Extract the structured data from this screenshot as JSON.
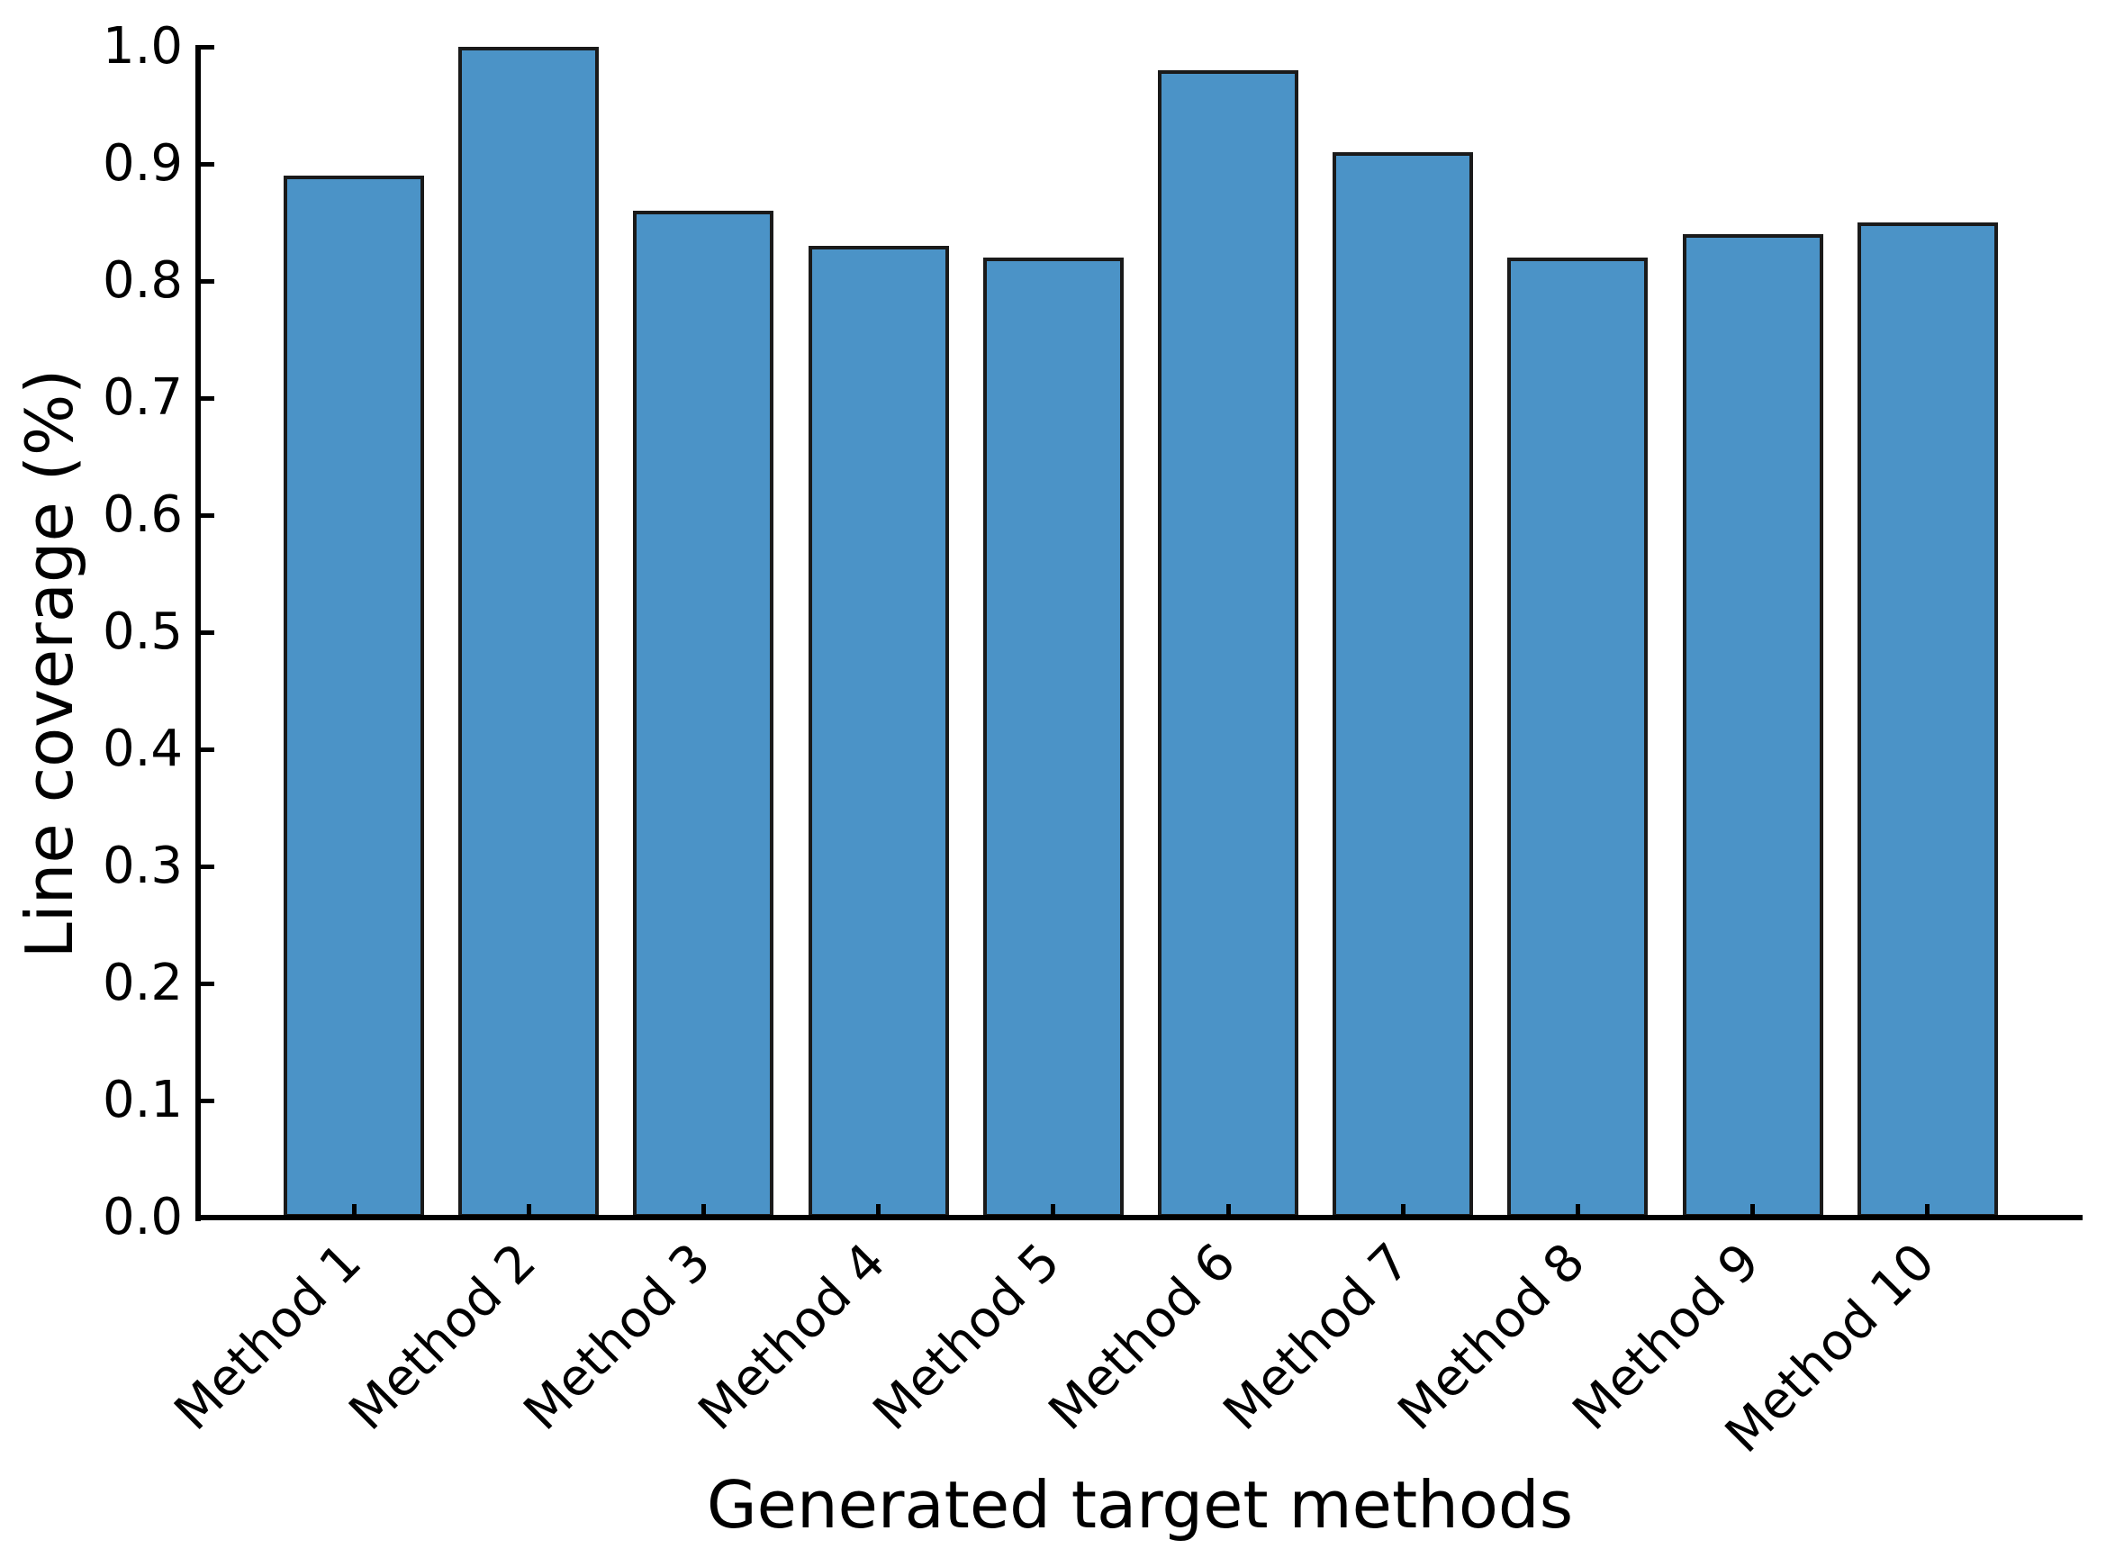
{
  "chart_data": {
    "type": "bar",
    "title": "",
    "xlabel": "Generated target methods",
    "ylabel": "Line coverage (%)",
    "categories": [
      "Method 1",
      "Method 2",
      "Method 3",
      "Method 4",
      "Method 5",
      "Method 6",
      "Method 7",
      "Method 8",
      "Method 9",
      "Method 10"
    ],
    "values": [
      0.89,
      1.0,
      0.86,
      0.83,
      0.82,
      0.98,
      0.91,
      0.82,
      0.84,
      0.85
    ],
    "ylim": [
      0.0,
      1.0
    ],
    "yticks": [
      0.0,
      0.1,
      0.2,
      0.3,
      0.4,
      0.5,
      0.6,
      0.7,
      0.8,
      0.9,
      1.0
    ],
    "ytick_labels": [
      "0.0",
      "0.1",
      "0.2",
      "0.3",
      "0.4",
      "0.5",
      "0.6",
      "0.7",
      "0.8",
      "0.9",
      "1.0"
    ],
    "grid": false,
    "legend": null,
    "tick_direction": "in",
    "bar_color": "#4b93c7",
    "bar_edge_color": "#1a1a1a",
    "axis_color": "#000000",
    "background_color": "#ffffff"
  }
}
